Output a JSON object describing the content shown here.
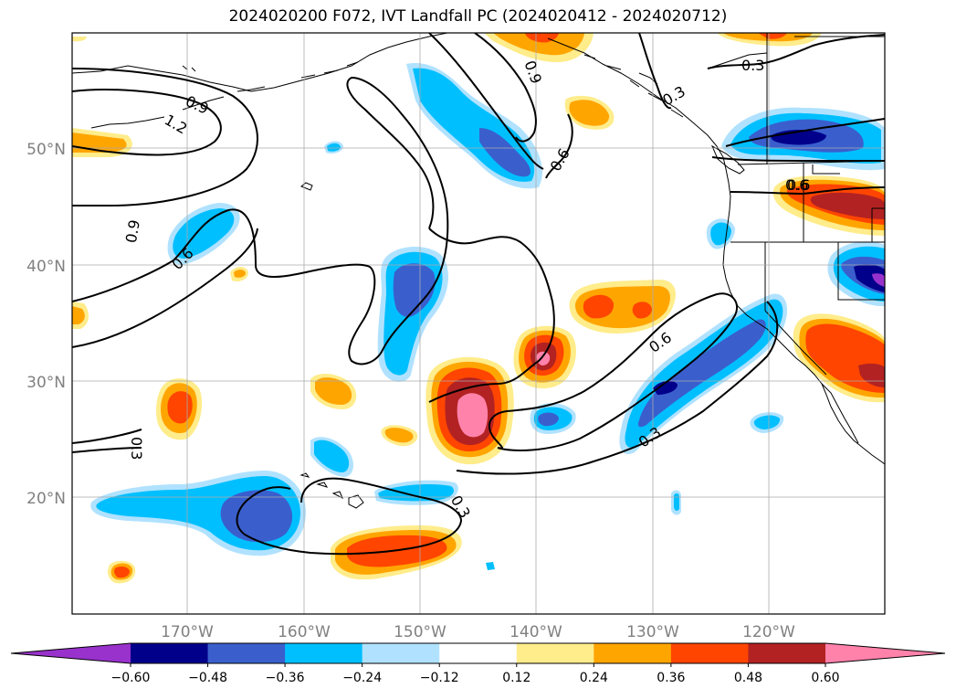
{
  "title": "2024020200 F072, IVT Landfall PC (2024020412 - 2024020712)",
  "map": {
    "lat_labels": [
      "50°N",
      "40°N",
      "30°N",
      "20°N"
    ],
    "lon_labels": [
      "170°W",
      "160°W",
      "150°W",
      "140°W",
      "130°W",
      "120°W"
    ],
    "contour_labels": [
      "0.9",
      "1.2",
      "0.9",
      "0.6",
      "0.6",
      "0.9",
      "0.6",
      "0.3",
      "0.3",
      "0.6",
      "0.6",
      "0.3",
      "0.3",
      "0.3"
    ]
  },
  "colorbar": {
    "ticks": [
      "−0.60",
      "−0.48",
      "−0.36",
      "−0.24",
      "−0.12",
      "0.12",
      "0.24",
      "0.36",
      "0.48",
      "0.60"
    ],
    "colors": [
      "#9932cc",
      "#00008b",
      "#3a5fcd",
      "#00bfff",
      "#b0e2ff",
      "#ffffff",
      "#ffec8b",
      "#ffa500",
      "#ff4500",
      "#b22222",
      "#ff82ab"
    ]
  }
}
